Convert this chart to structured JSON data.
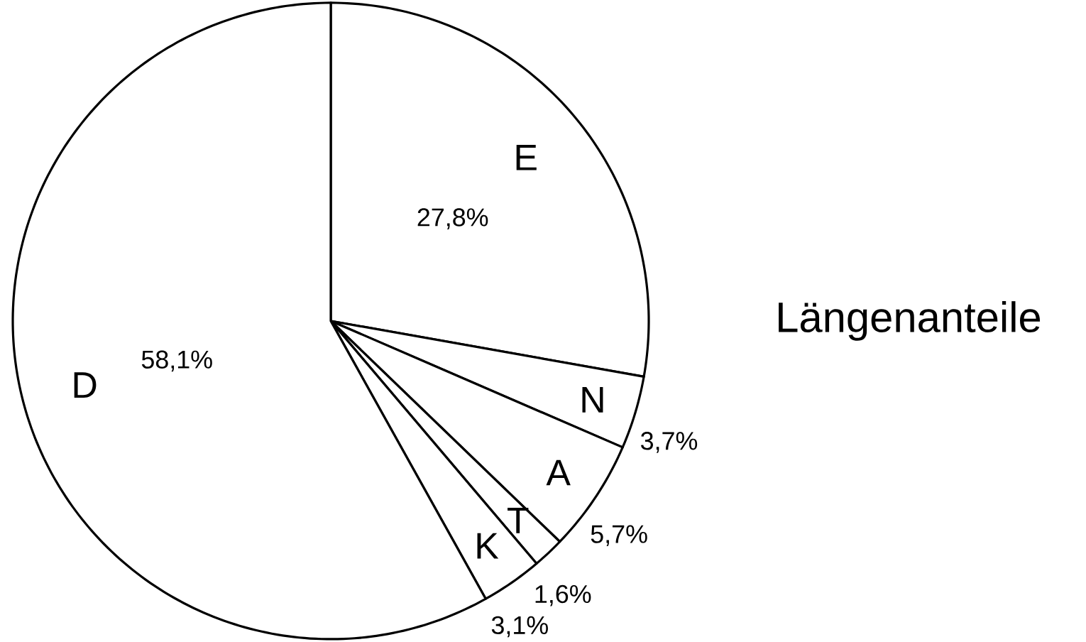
{
  "chart_data": {
    "type": "pie",
    "title": "Längenanteile",
    "categories": [
      "E",
      "N",
      "A",
      "T",
      "K",
      "D"
    ],
    "values": [
      27.8,
      3.7,
      5.7,
      1.6,
      3.1,
      58.1
    ],
    "value_labels": [
      "27,8%",
      "3,7%",
      "5,7%",
      "1,6%",
      "3,1%",
      "58,1%"
    ],
    "colors": [
      "#ffffff",
      "#ffffff",
      "#ffffff",
      "#ffffff",
      "#ffffff",
      "#ffffff"
    ]
  }
}
